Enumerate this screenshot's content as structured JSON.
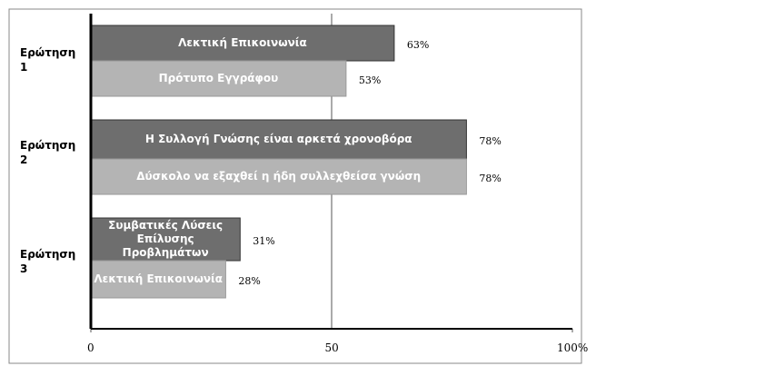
{
  "chart_data": {
    "type": "bar",
    "categories": [
      "Ερώτηση 1",
      "Ερώτηση 2",
      "Ερώτηση 3"
    ],
    "series": [
      {
        "color": "#6e6e6e",
        "values": [
          63,
          78,
          31
        ],
        "value_labels": [
          "63%",
          "78%",
          "31%"
        ],
        "bar_labels": [
          "Λεκτική Επικοινωνία",
          "Η Συλλογή Γνώσης είναι αρκετά χρονοβόρα",
          "Συμβατικές Λύσεις Επίλυσης Προβλημάτων"
        ]
      },
      {
        "color": "#b4b4b4",
        "values": [
          53,
          78,
          28
        ],
        "value_labels": [
          "53%",
          "78%",
          "28%"
        ],
        "bar_labels": [
          "Πρότυπο Εγγράφου",
          "Δύσκολο να εξαχθεί η ήδη συλλεχθείσα γνώση",
          "Λεκτική Επικοινωνία"
        ]
      }
    ],
    "xlim": [
      0,
      100
    ],
    "xticks": [
      0,
      50,
      {
        "value": 100,
        "label": "100%"
      }
    ],
    "grid": true
  }
}
